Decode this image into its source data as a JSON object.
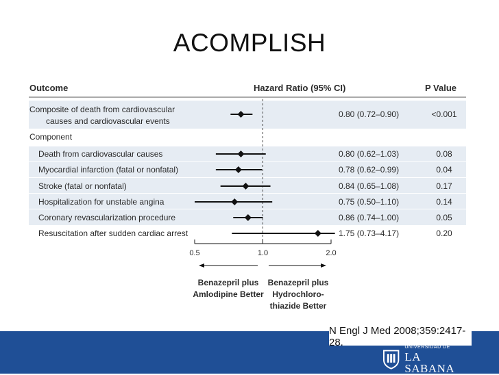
{
  "slide": {
    "title": "ACOMPLISH",
    "citation": "N Engl J Med 2008;359:2417-28.",
    "logo": {
      "line1": "UNIVERSIDAD DE",
      "line2": "LA SABANA"
    }
  },
  "colors": {
    "row_stripe": "#e6ecf3",
    "footer": "#1f4f96",
    "marks": "#111111"
  },
  "chart_data": {
    "type": "forest",
    "headers": {
      "outcome": "Outcome",
      "hr": "Hazard Ratio (95% CI)",
      "p": "P Value"
    },
    "x_scale": "log",
    "xlim": [
      0.5,
      2.0
    ],
    "ticks": [
      "0.5",
      "1.0",
      "2.0"
    ],
    "reference_line": 1.0,
    "direction_labels": {
      "left": [
        "Benazepril plus",
        "Amlodipine Better"
      ],
      "right": [
        "Benazepril plus",
        "Hydrochloro-",
        "thiazide Better"
      ]
    },
    "rows": [
      {
        "label": [
          "Composite of death from cardiovascular",
          "causes and cardiovascular events"
        ],
        "hr": 0.8,
        "lo": 0.72,
        "hi": 0.9,
        "ci_text": "0.80 (0.72–0.90)",
        "p": "<0.001",
        "shaded": true
      },
      {
        "label": [
          "Component"
        ],
        "header": true
      },
      {
        "label": [
          "Death from cardiovascular causes"
        ],
        "hr": 0.8,
        "lo": 0.62,
        "hi": 1.03,
        "ci_text": "0.80 (0.62–1.03)",
        "p": "0.08",
        "shaded": true
      },
      {
        "label": [
          "Myocardial infarction (fatal or nonfatal)"
        ],
        "hr": 0.78,
        "lo": 0.62,
        "hi": 0.99,
        "ci_text": "0.78 (0.62–0.99)",
        "p": "0.04",
        "shaded": true
      },
      {
        "label": [
          "Stroke (fatal or nonfatal)"
        ],
        "hr": 0.84,
        "lo": 0.65,
        "hi": 1.08,
        "ci_text": "0.84 (0.65–1.08)",
        "p": "0.17",
        "shaded": true
      },
      {
        "label": [
          "Hospitalization for unstable angina"
        ],
        "hr": 0.75,
        "lo": 0.5,
        "hi": 1.1,
        "ci_text": "0.75 (0.50–1.10)",
        "p": "0.14",
        "shaded": true
      },
      {
        "label": [
          "Coronary revascularization procedure"
        ],
        "hr": 0.86,
        "lo": 0.74,
        "hi": 1.0,
        "ci_text": "0.86 (0.74–1.00)",
        "p": "0.05",
        "shaded": true
      },
      {
        "label": [
          "Resuscitation after sudden cardiac arrest"
        ],
        "hr": 1.75,
        "lo": 0.73,
        "hi": 4.17,
        "ci_text": "1.75 (0.73–4.17)",
        "p": "0.20",
        "shaded": false
      }
    ]
  }
}
